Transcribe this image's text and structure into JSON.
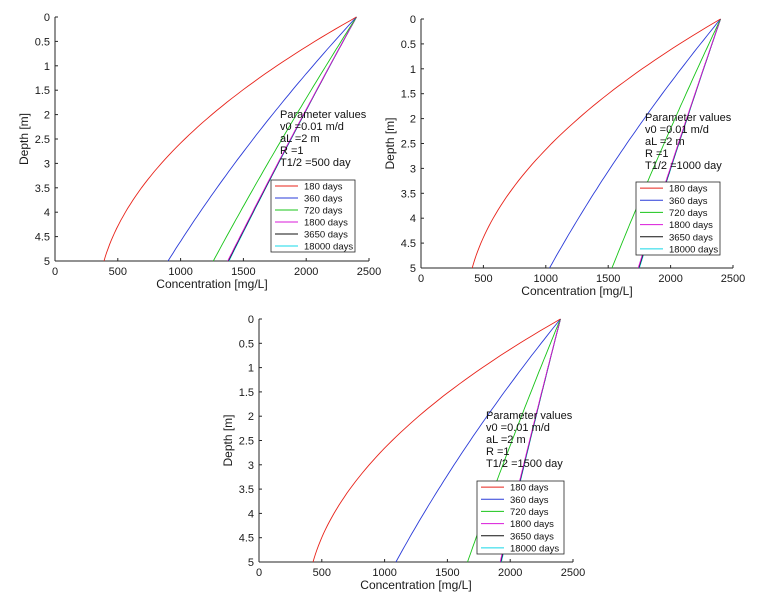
{
  "chart_data": [
    {
      "type": "line",
      "xlabel": "Concentration [mg/L]",
      "ylabel": "Depth [m]",
      "xlim": [
        0,
        2500
      ],
      "ylim": [
        0,
        5
      ],
      "y_reversed": true,
      "xticks": [
        "0",
        "500",
        "1000",
        "1500",
        "2000",
        "2500"
      ],
      "yticks": [
        "0",
        "0.5",
        "1",
        "1.5",
        "2",
        "2.5",
        "3",
        "3.5",
        "4",
        "4.5",
        "5"
      ],
      "parameters": [
        "Parameter values",
        "v0 =0.01 m/d",
        "aL =2 m",
        "R =1",
        "T1/2 =500 day"
      ],
      "series": [
        {
          "name": "180 days",
          "color": "#e8231a",
          "top": 2400,
          "bottom": 390,
          "curv": 0.45
        },
        {
          "name": "360 days",
          "color": "#2a3bd8",
          "top": 2400,
          "bottom": 900,
          "curv": 0.12
        },
        {
          "name": "720 days",
          "color": "#18c418",
          "top": 2400,
          "bottom": 1260,
          "curv": 0.05
        },
        {
          "name": "1800 days",
          "color": "#d918d9",
          "top": 2400,
          "bottom": 1375,
          "curv": 0.03
        },
        {
          "name": "3650 days",
          "color": "#111111",
          "top": 2400,
          "bottom": 1380,
          "curv": 0.03
        },
        {
          "name": "18000 days",
          "color": "#15d8e8",
          "top": 2400,
          "bottom": 1385,
          "curv": 0.03
        }
      ]
    },
    {
      "type": "line",
      "xlabel": "Concentration [mg/L]",
      "ylabel": "Depth [m]",
      "xlim": [
        0,
        2500
      ],
      "ylim": [
        0,
        5
      ],
      "y_reversed": true,
      "xticks": [
        "0",
        "500",
        "1000",
        "1500",
        "2000",
        "2500"
      ],
      "yticks": [
        "0",
        "0.5",
        "1",
        "1.5",
        "2",
        "2.5",
        "3",
        "3.5",
        "4",
        "4.5",
        "5"
      ],
      "parameters": [
        "Parameter values",
        "v0 =0.01 m/d",
        "aL =2 m",
        "R =1",
        "T1/2 =1000 day"
      ],
      "series": [
        {
          "name": "180 days",
          "color": "#e8231a",
          "top": 2400,
          "bottom": 410,
          "curv": 0.45
        },
        {
          "name": "360 days",
          "color": "#2a3bd8",
          "top": 2400,
          "bottom": 1030,
          "curv": 0.12
        },
        {
          "name": "720 days",
          "color": "#18c418",
          "top": 2400,
          "bottom": 1530,
          "curv": 0.05
        },
        {
          "name": "1800 days",
          "color": "#d918d9",
          "top": 2400,
          "bottom": 1740,
          "curv": 0.03
        },
        {
          "name": "3650 days",
          "color": "#111111",
          "top": 2400,
          "bottom": 1745,
          "curv": 0.03
        },
        {
          "name": "18000 days",
          "color": "#15d8e8",
          "top": 2400,
          "bottom": 1750,
          "curv": 0.03
        }
      ]
    },
    {
      "type": "line",
      "xlabel": "Concentration [mg/L]",
      "ylabel": "Depth [m]",
      "xlim": [
        0,
        2500
      ],
      "ylim": [
        0,
        5
      ],
      "y_reversed": true,
      "xticks": [
        "0",
        "500",
        "1000",
        "1500",
        "2000",
        "2500"
      ],
      "yticks": [
        "0",
        "0.5",
        "1",
        "1.5",
        "2",
        "2.5",
        "3",
        "3.5",
        "4",
        "4.5",
        "5"
      ],
      "parameters": [
        "Parameter values",
        "v0 =0.01 m/d",
        "aL =2 m",
        "R =1",
        "T1/2 =1500 day"
      ],
      "series": [
        {
          "name": "180 days",
          "color": "#e8231a",
          "top": 2400,
          "bottom": 430,
          "curv": 0.45
        },
        {
          "name": "360 days",
          "color": "#2a3bd8",
          "top": 2400,
          "bottom": 1090,
          "curv": 0.12
        },
        {
          "name": "720 days",
          "color": "#18c418",
          "top": 2400,
          "bottom": 1660,
          "curv": 0.05
        },
        {
          "name": "1800 days",
          "color": "#d918d9",
          "top": 2400,
          "bottom": 1920,
          "curv": 0.03
        },
        {
          "name": "3650 days",
          "color": "#111111",
          "top": 2400,
          "bottom": 1925,
          "curv": 0.03
        },
        {
          "name": "18000 days",
          "color": "#15d8e8",
          "top": 2400,
          "bottom": 1930,
          "curv": 0.03
        }
      ]
    }
  ]
}
